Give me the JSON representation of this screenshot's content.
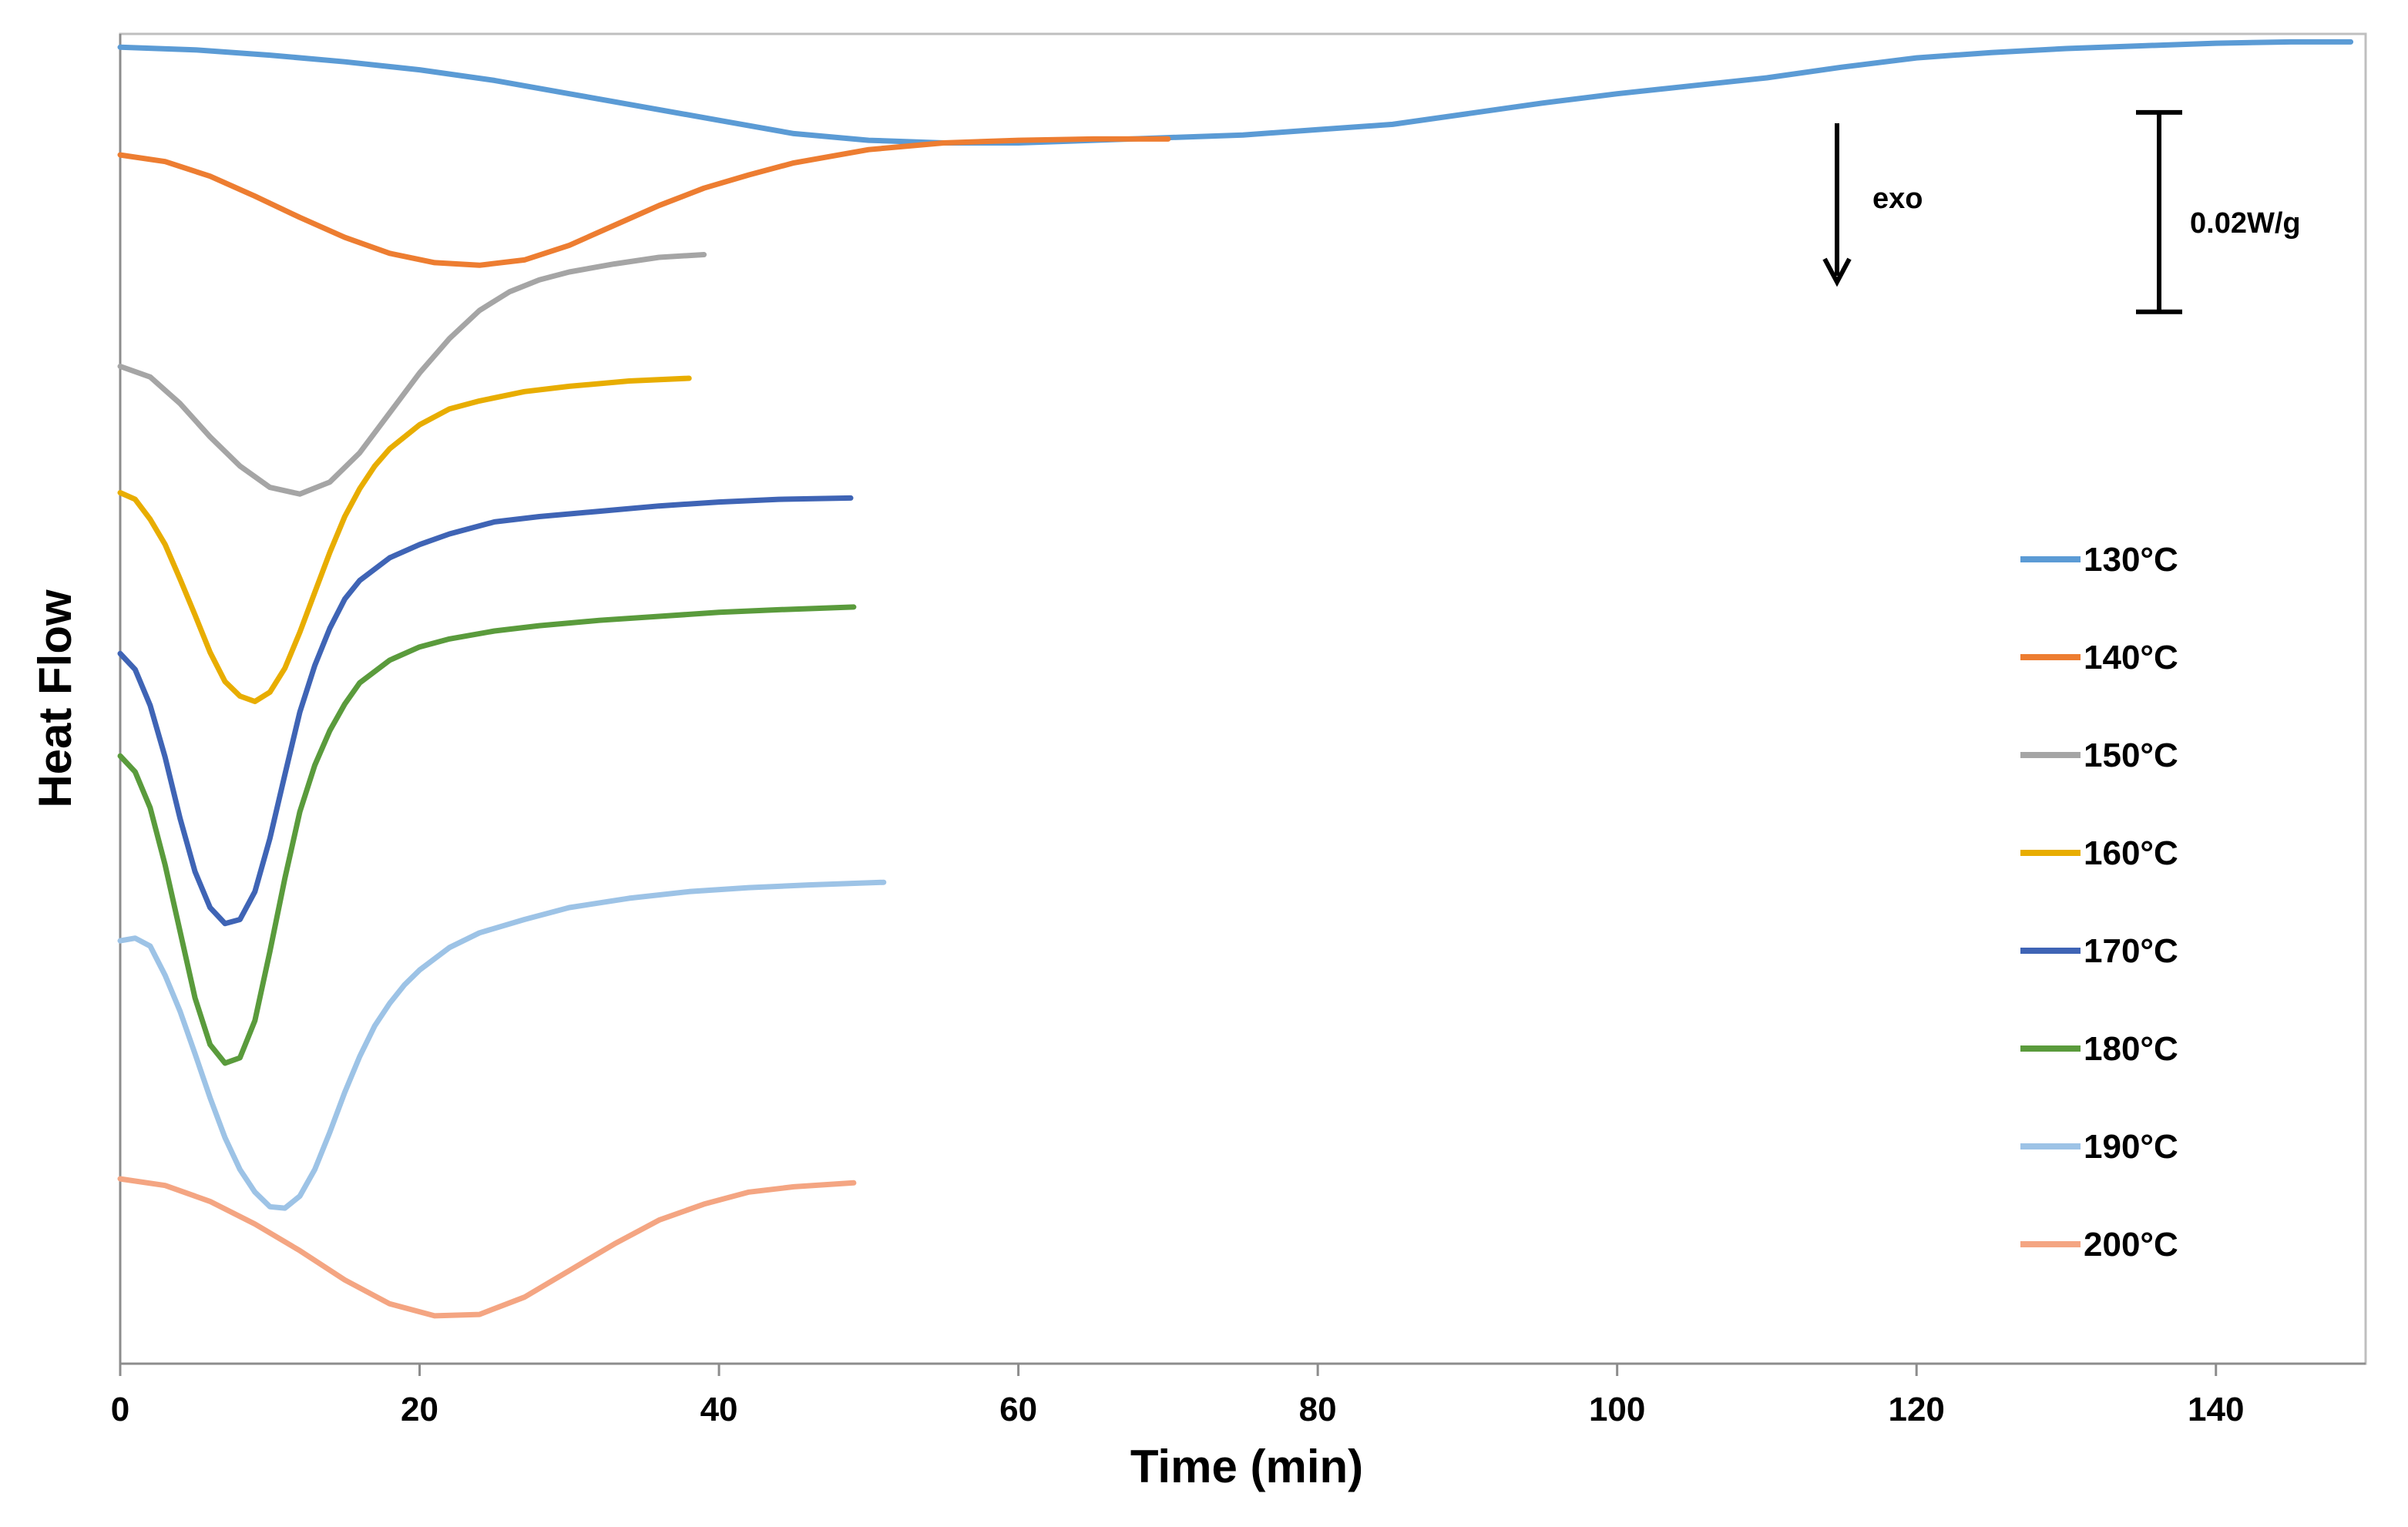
{
  "chart_data": {
    "type": "line",
    "title": "",
    "xlabel": "Time (min)",
    "ylabel": "Heat Flow",
    "xlim": [
      0,
      150
    ],
    "ylim": [
      0,
      100
    ],
    "xticks": [
      0,
      20,
      40,
      60,
      80,
      100,
      120,
      140
    ],
    "grid": false,
    "legend_position": "right",
    "annotations": {
      "exo_label": "exo",
      "scale_label": "0.02W/g",
      "scale_bar_span": [
        79.1,
        94.1
      ]
    },
    "series": [
      {
        "name": "130°C",
        "color": "#5b9bd5",
        "x": [
          0,
          5,
          10,
          15,
          20,
          25,
          30,
          35,
          40,
          45,
          50,
          55,
          60,
          65,
          70,
          75,
          80,
          85,
          90,
          95,
          100,
          105,
          110,
          115,
          120,
          125,
          130,
          135,
          140,
          145,
          149
        ],
        "y": [
          99.0,
          98.8,
          98.4,
          97.9,
          97.3,
          96.5,
          95.5,
          94.5,
          93.5,
          92.5,
          92.0,
          91.8,
          91.8,
          92.0,
          92.2,
          92.4,
          92.8,
          93.2,
          94.0,
          94.8,
          95.5,
          96.1,
          96.7,
          97.5,
          98.2,
          98.6,
          98.9,
          99.1,
          99.3,
          99.4,
          99.4
        ]
      },
      {
        "name": "140°C",
        "color": "#ed7d31",
        "x": [
          0,
          3,
          6,
          9,
          12,
          15,
          18,
          21,
          24,
          27,
          30,
          33,
          36,
          39,
          42,
          45,
          50,
          55,
          60,
          65,
          70
        ],
        "y": [
          90.9,
          90.4,
          89.3,
          87.8,
          86.2,
          84.7,
          83.5,
          82.8,
          82.6,
          83.0,
          84.1,
          85.6,
          87.1,
          88.4,
          89.4,
          90.3,
          91.3,
          91.8,
          92.0,
          92.1,
          92.1
        ]
      },
      {
        "name": "150°C",
        "color": "#a5a5a5",
        "x": [
          0,
          2,
          4,
          6,
          8,
          10,
          12,
          14,
          16,
          18,
          20,
          22,
          24,
          26,
          28,
          30,
          33,
          36,
          39
        ],
        "y": [
          75.0,
          74.2,
          72.2,
          69.7,
          67.5,
          65.9,
          65.4,
          66.3,
          68.5,
          71.5,
          74.5,
          77.1,
          79.2,
          80.6,
          81.5,
          82.1,
          82.7,
          83.2,
          83.4
        ]
      },
      {
        "name": "160°C",
        "color": "#e8ad00",
        "x": [
          0,
          1,
          2,
          3,
          4,
          5,
          6,
          7,
          8,
          9,
          10,
          11,
          12,
          13,
          14,
          15,
          16,
          17,
          18,
          20,
          22,
          24,
          27,
          30,
          34,
          38
        ],
        "y": [
          65.5,
          65.0,
          63.5,
          61.6,
          59.0,
          56.3,
          53.5,
          51.3,
          50.2,
          49.8,
          50.5,
          52.3,
          55.0,
          58.0,
          61.0,
          63.7,
          65.8,
          67.5,
          68.8,
          70.6,
          71.8,
          72.4,
          73.1,
          73.5,
          73.9,
          74.1
        ]
      },
      {
        "name": "170°C",
        "color": "#3f64b5",
        "x": [
          0,
          1,
          2,
          3,
          4,
          5,
          6,
          7,
          8,
          9,
          10,
          11,
          12,
          13,
          14,
          15,
          16,
          18,
          20,
          22,
          25,
          28,
          32,
          36,
          40,
          44,
          48.8
        ],
        "y": [
          53.4,
          52.2,
          49.5,
          45.6,
          41.0,
          37.0,
          34.3,
          33.1,
          33.4,
          35.5,
          39.5,
          44.3,
          49.0,
          52.5,
          55.3,
          57.5,
          58.9,
          60.6,
          61.6,
          62.4,
          63.3,
          63.7,
          64.1,
          64.5,
          64.8,
          65.0,
          65.1
        ]
      },
      {
        "name": "180°C",
        "color": "#5a9b3c",
        "x": [
          0,
          1,
          2,
          3,
          4,
          5,
          6,
          7,
          8,
          9,
          10,
          11,
          12,
          13,
          14,
          15,
          16,
          18,
          20,
          22,
          25,
          28,
          32,
          36,
          40,
          44,
          49
        ],
        "y": [
          45.7,
          44.5,
          41.8,
          37.5,
          32.5,
          27.5,
          24.0,
          22.6,
          23.0,
          25.8,
          31.0,
          36.5,
          41.5,
          45.0,
          47.6,
          49.6,
          51.2,
          52.9,
          53.9,
          54.5,
          55.1,
          55.5,
          55.9,
          56.2,
          56.5,
          56.7,
          56.9
        ]
      },
      {
        "name": "190°C",
        "color": "#9dc3e6",
        "x": [
          0,
          1,
          2,
          3,
          4,
          5,
          6,
          7,
          8,
          9,
          10,
          11,
          12,
          13,
          14,
          15,
          16,
          17,
          18,
          19,
          20,
          22,
          24,
          27,
          30,
          34,
          38,
          42,
          46,
          51
        ],
        "y": [
          31.8,
          32.0,
          31.4,
          29.2,
          26.5,
          23.3,
          20.0,
          17.0,
          14.6,
          12.9,
          11.8,
          11.7,
          12.6,
          14.6,
          17.4,
          20.4,
          23.1,
          25.4,
          27.1,
          28.5,
          29.6,
          31.3,
          32.4,
          33.4,
          34.3,
          35.0,
          35.5,
          35.8,
          36.0,
          36.2
        ]
      },
      {
        "name": "200°C",
        "color": "#f4a582",
        "x": [
          0,
          3,
          6,
          9,
          12,
          15,
          18,
          21,
          24,
          27,
          30,
          33,
          36,
          39,
          42,
          45,
          49
        ],
        "y": [
          13.9,
          13.4,
          12.2,
          10.5,
          8.5,
          6.3,
          4.5,
          3.6,
          3.7,
          5.0,
          7.0,
          9.0,
          10.8,
          12.0,
          12.9,
          13.3,
          13.6
        ]
      }
    ]
  }
}
